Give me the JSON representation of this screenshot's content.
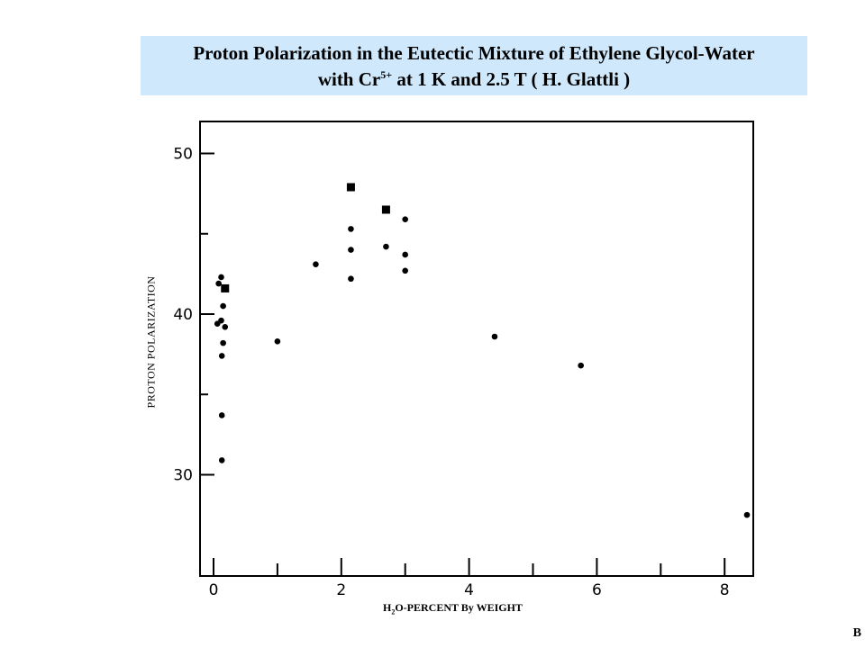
{
  "title": {
    "line1": "Proton Polarization in the Eutectic Mixture of Ethylene Glycol-Water",
    "line2_pre": "with Cr",
    "line2_sup": "5+",
    "line2_post": " at 1 K and 2.5 T ( H. Glattli )"
  },
  "corner_label": "B",
  "chart_data": {
    "type": "scatter",
    "xlabel_main": "H",
    "xlabel_sub": "2",
    "xlabel_rest": "O-PERCENT By WEIGHT",
    "ylabel": "PROTON  POLARIZATION",
    "xlim": [
      -0.3,
      8.6
    ],
    "ylim": [
      24,
      52
    ],
    "x_ticks": [
      0,
      1,
      2,
      3,
      4,
      5,
      6,
      7,
      8
    ],
    "x_tick_labels": [
      "0",
      "",
      "2",
      "",
      "4",
      "",
      "6",
      "",
      "8"
    ],
    "y_ticks": [
      30,
      35,
      40,
      45,
      50
    ],
    "y_tick_labels": [
      "30",
      "",
      "40",
      "",
      "50"
    ],
    "series": [
      {
        "marker": "circle",
        "points": [
          [
            0.08,
            41.9
          ],
          [
            0.12,
            42.3
          ],
          [
            0.15,
            40.5
          ],
          [
            0.12,
            39.6
          ],
          [
            0.06,
            39.4
          ],
          [
            0.18,
            39.2
          ],
          [
            0.15,
            38.2
          ],
          [
            0.13,
            37.4
          ],
          [
            0.13,
            33.7
          ],
          [
            0.13,
            30.9
          ],
          [
            1.0,
            38.3
          ],
          [
            1.6,
            43.1
          ],
          [
            2.15,
            45.3
          ],
          [
            2.15,
            44.0
          ],
          [
            2.15,
            42.2
          ],
          [
            2.7,
            44.2
          ],
          [
            3.0,
            45.9
          ],
          [
            3.0,
            43.7
          ],
          [
            3.0,
            42.7
          ],
          [
            4.4,
            38.6
          ],
          [
            5.75,
            36.8
          ],
          [
            8.35,
            27.5
          ]
        ]
      },
      {
        "marker": "square",
        "points": [
          [
            0.18,
            41.6
          ],
          [
            2.15,
            47.9
          ],
          [
            2.7,
            46.5
          ]
        ]
      }
    ]
  }
}
